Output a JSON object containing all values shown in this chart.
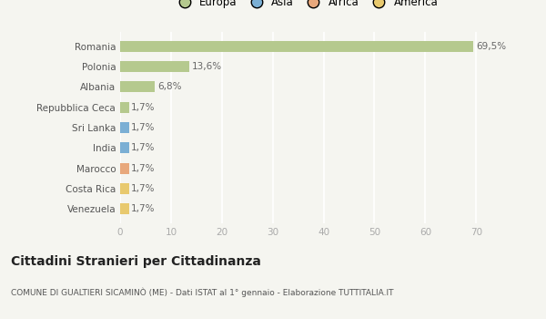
{
  "categories": [
    "Romania",
    "Polonia",
    "Albania",
    "Repubblica Ceca",
    "Sri Lanka",
    "India",
    "Marocco",
    "Costa Rica",
    "Venezuela"
  ],
  "values": [
    69.5,
    13.6,
    6.8,
    1.7,
    1.7,
    1.7,
    1.7,
    1.7,
    1.7
  ],
  "labels": [
    "69,5%",
    "13,6%",
    "6,8%",
    "1,7%",
    "1,7%",
    "1,7%",
    "1,7%",
    "1,7%",
    "1,7%"
  ],
  "bar_colors": [
    "#b5c98e",
    "#b5c98e",
    "#b5c98e",
    "#b5c98e",
    "#7bafd4",
    "#7bafd4",
    "#e8a87c",
    "#e8c96e",
    "#e8c96e"
  ],
  "legend_labels": [
    "Europa",
    "Asia",
    "Africa",
    "America"
  ],
  "legend_colors": [
    "#b5c98e",
    "#7bafd4",
    "#e8a87c",
    "#e8c96e"
  ],
  "xlim": [
    0,
    73
  ],
  "xticks": [
    0,
    10,
    20,
    30,
    40,
    50,
    60,
    70
  ],
  "title": "Cittadini Stranieri per Cittadinanza",
  "subtitle": "COMUNE DI GUALTIERI SICAMINÒ (ME) - Dati ISTAT al 1° gennaio - Elaborazione TUTTITALIA.IT",
  "bg_color": "#f5f5f0",
  "grid_color": "#ffffff",
  "bar_height": 0.55
}
